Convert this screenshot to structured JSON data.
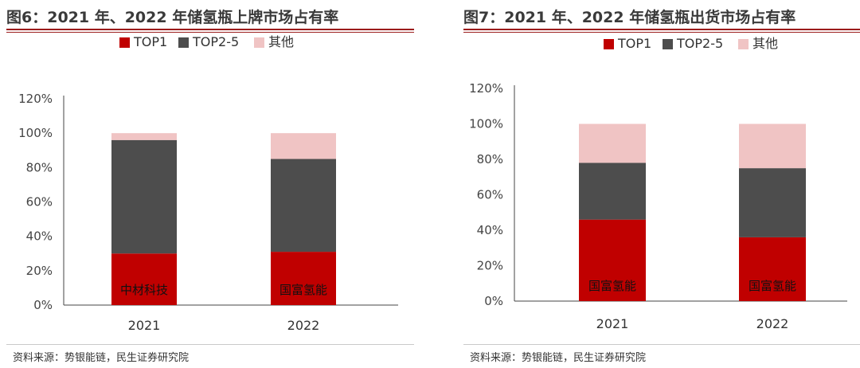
{
  "charts": [
    {
      "id": "fig6",
      "title": "图6：2021 年、2022 年储氢瓶上牌市场占有率",
      "source": "资料来源：势银能链，民生证券研究院",
      "chart_data": {
        "type": "bar",
        "stacked": true,
        "categories": [
          "2021",
          "2022"
        ],
        "series": [
          {
            "name": "TOP1",
            "color": "#c00000",
            "values": [
              30,
              31
            ]
          },
          {
            "name": "TOP2-5",
            "color": "#4d4d4d",
            "values": [
              66,
              54
            ]
          },
          {
            "name": "其他",
            "color": "#f0c4c4",
            "values": [
              4,
              15
            ]
          }
        ],
        "bar_labels": [
          "中材科技",
          "国富氢能"
        ],
        "ylim": [
          0,
          120
        ],
        "yticks": [
          "0%",
          "20%",
          "40%",
          "60%",
          "80%",
          "100%",
          "120%"
        ],
        "legend": "top",
        "grid": false
      }
    },
    {
      "id": "fig7",
      "title": "图7：2021 年、2022 年储氢瓶出货市场占有率",
      "source": "资料来源：势银能链，民生证券研究院",
      "chart_data": {
        "type": "bar",
        "stacked": true,
        "categories": [
          "2021",
          "2022"
        ],
        "series": [
          {
            "name": "TOP1",
            "color": "#c00000",
            "values": [
              46,
              36
            ]
          },
          {
            "name": "TOP2-5",
            "color": "#4d4d4d",
            "values": [
              32,
              39
            ]
          },
          {
            "name": "其他",
            "color": "#f0c4c4",
            "values": [
              22,
              25
            ]
          }
        ],
        "bar_labels": [
          "国富氢能",
          "国富氢能"
        ],
        "ylim": [
          0,
          120
        ],
        "yticks": [
          "0%",
          "20%",
          "40%",
          "60%",
          "80%",
          "100%",
          "120%"
        ],
        "legend": "top",
        "grid": false
      }
    }
  ]
}
